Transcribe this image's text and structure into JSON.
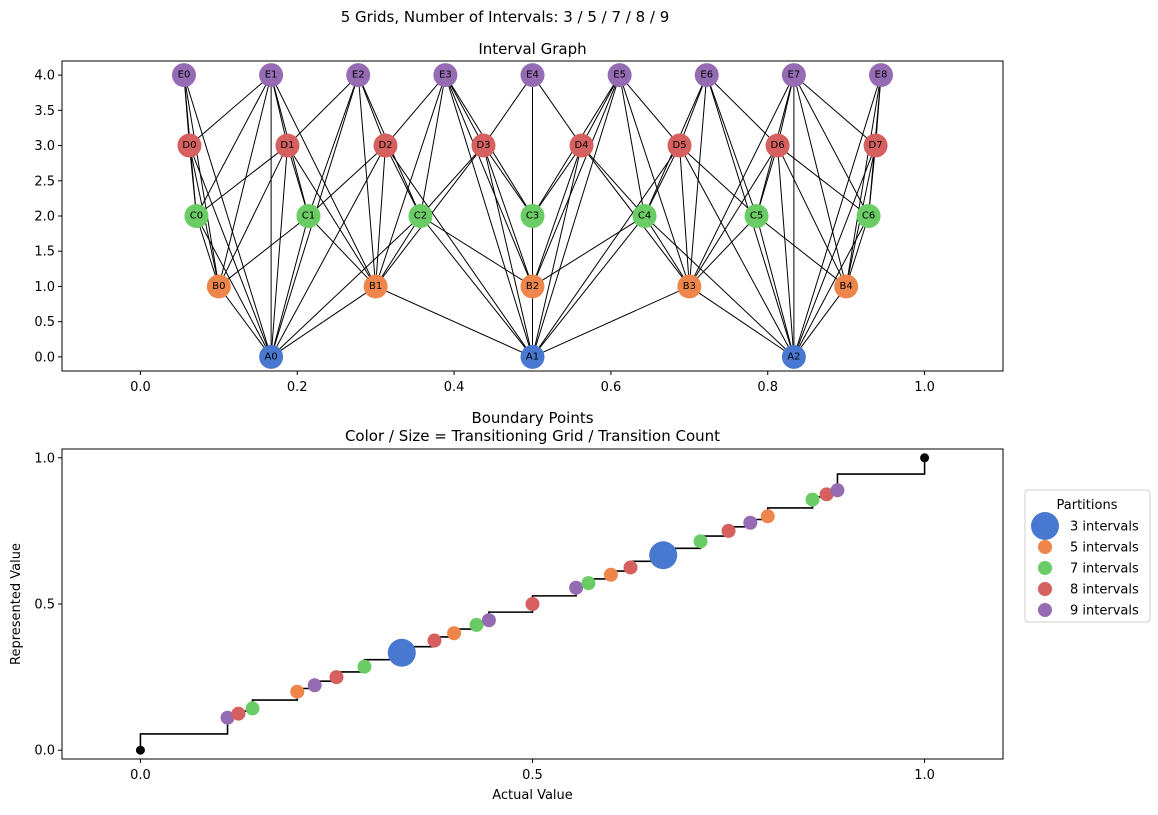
{
  "figure": {
    "suptitle": "5 Grids, Number of Intervals: 3 / 5 / 7 / 8 / 9"
  },
  "colors": {
    "A": "#4878CF",
    "B": "#EE854A",
    "C": "#6ACC64",
    "D": "#D65F5F",
    "E": "#956CB4"
  },
  "chart_data": [
    {
      "type": "graph",
      "title": "Interval Graph",
      "xlim": [
        -0.1,
        1.1
      ],
      "ylim": [
        -0.2,
        4.2
      ],
      "xticks": [
        0.0,
        0.2,
        0.4,
        0.6,
        0.8,
        1.0
      ],
      "xtick_labels": [
        "0.0",
        "0.2",
        "0.4",
        "0.6",
        "0.8",
        "1.0"
      ],
      "yticks": [
        0.0,
        0.5,
        1.0,
        1.5,
        2.0,
        2.5,
        3.0,
        3.5,
        4.0
      ],
      "ytick_labels": [
        "0.0",
        "0.5",
        "1.0",
        "1.5",
        "2.0",
        "2.5",
        "3.0",
        "3.5",
        "4.0"
      ],
      "levels": [
        {
          "prefix": "A",
          "y": 0,
          "intervals": 3
        },
        {
          "prefix": "B",
          "y": 1,
          "intervals": 5
        },
        {
          "prefix": "C",
          "y": 2,
          "intervals": 7
        },
        {
          "prefix": "D",
          "y": 3,
          "intervals": 8
        },
        {
          "prefix": "E",
          "y": 4,
          "intervals": 9
        }
      ],
      "edges": "nodes on adjacent and non-adjacent levels are connected when their intervals overlap"
    },
    {
      "type": "step+scatter",
      "title": "Boundary Points",
      "subtitle": "Color / Size = Transitioning Grid / Transition Count",
      "xlabel": "Actual Value",
      "ylabel": "Represented Value",
      "xlim": [
        -0.1,
        1.1
      ],
      "ylim": [
        -0.03,
        1.03
      ],
      "xticks": [
        0.0,
        0.5,
        1.0
      ],
      "xtick_labels": [
        "0.0",
        "0.5",
        "1.0"
      ],
      "yticks": [
        0.0,
        0.5,
        1.0
      ],
      "ytick_labels": [
        "0.0",
        "0.5",
        "1.0"
      ],
      "boundaries": [
        {
          "x": 0.1111,
          "grids": [
            "E"
          ]
        },
        {
          "x": 0.125,
          "grids": [
            "D"
          ]
        },
        {
          "x": 0.1429,
          "grids": [
            "C"
          ]
        },
        {
          "x": 0.2,
          "grids": [
            "B"
          ]
        },
        {
          "x": 0.2222,
          "grids": [
            "E"
          ]
        },
        {
          "x": 0.25,
          "grids": [
            "D"
          ]
        },
        {
          "x": 0.2857,
          "grids": [
            "C"
          ]
        },
        {
          "x": 0.3333,
          "grids": [
            "A",
            "E"
          ]
        },
        {
          "x": 0.375,
          "grids": [
            "D"
          ]
        },
        {
          "x": 0.4,
          "grids": [
            "B"
          ]
        },
        {
          "x": 0.4286,
          "grids": [
            "C"
          ]
        },
        {
          "x": 0.4444,
          "grids": [
            "E"
          ]
        },
        {
          "x": 0.5,
          "grids": [
            "D"
          ]
        },
        {
          "x": 0.5556,
          "grids": [
            "E"
          ]
        },
        {
          "x": 0.5714,
          "grids": [
            "C"
          ]
        },
        {
          "x": 0.6,
          "grids": [
            "B"
          ]
        },
        {
          "x": 0.625,
          "grids": [
            "D"
          ]
        },
        {
          "x": 0.6667,
          "grids": [
            "A",
            "E"
          ]
        },
        {
          "x": 0.7143,
          "grids": [
            "C"
          ]
        },
        {
          "x": 0.75,
          "grids": [
            "D"
          ]
        },
        {
          "x": 0.7778,
          "grids": [
            "E"
          ]
        },
        {
          "x": 0.8,
          "grids": [
            "B"
          ]
        },
        {
          "x": 0.8571,
          "grids": [
            "C"
          ]
        },
        {
          "x": 0.875,
          "grids": [
            "D"
          ]
        },
        {
          "x": 0.8889,
          "grids": [
            "E"
          ]
        }
      ],
      "endpoints": [
        [
          0,
          0
        ],
        [
          1,
          1
        ]
      ],
      "legend": {
        "title": "Partitions",
        "placement": "outside-right",
        "entries": [
          {
            "label": "3 intervals",
            "grid": "A"
          },
          {
            "label": "5 intervals",
            "grid": "B"
          },
          {
            "label": "7 intervals",
            "grid": "C"
          },
          {
            "label": "8 intervals",
            "grid": "D"
          },
          {
            "label": "9 intervals",
            "grid": "E"
          }
        ]
      }
    }
  ]
}
